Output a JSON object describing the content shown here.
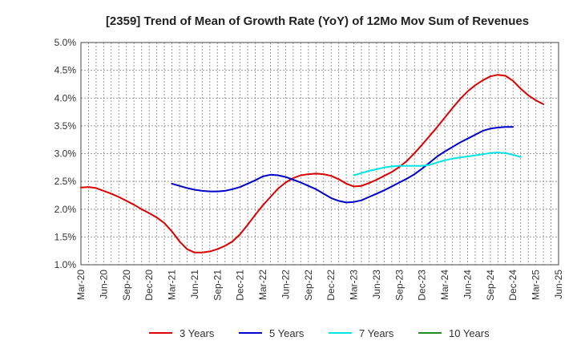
{
  "chart_data": {
    "type": "line",
    "title": "[2359]  Trend of Mean of Growth Rate (YoY) of 12Mo Mov Sum of Revenues",
    "xlabel": "",
    "ylabel": "",
    "ylim": [
      1.0,
      5.0
    ],
    "y_ticks": [
      1.0,
      1.5,
      2.0,
      2.5,
      3.0,
      3.5,
      4.0,
      4.5,
      5.0
    ],
    "y_tick_labels": [
      "1.0%",
      "1.5%",
      "2.0%",
      "2.5%",
      "3.0%",
      "3.5%",
      "4.0%",
      "4.5%",
      "5.0%"
    ],
    "x_tick_labels": [
      "Mar-20",
      "Jun-20",
      "Sep-20",
      "Dec-20",
      "Mar-21",
      "Jun-21",
      "Sep-21",
      "Dec-21",
      "Mar-22",
      "Jun-22",
      "Sep-22",
      "Dec-22",
      "Mar-23",
      "Jun-23",
      "Sep-23",
      "Dec-23",
      "Mar-24",
      "Jun-24",
      "Sep-24",
      "Dec-24",
      "Mar-25",
      "Jun-25"
    ],
    "x_unit": "months since Mar-20",
    "grid": true,
    "legend_position": "bottom",
    "series": [
      {
        "name": "3 Years",
        "color": "#dd0000",
        "points": [
          [
            0,
            2.39
          ],
          [
            1,
            2.4
          ],
          [
            2,
            2.38
          ],
          [
            3,
            2.33
          ],
          [
            4,
            2.28
          ],
          [
            5,
            2.22
          ],
          [
            6,
            2.15
          ],
          [
            7,
            2.08
          ],
          [
            8,
            2.0
          ],
          [
            9,
            1.93
          ],
          [
            10,
            1.85
          ],
          [
            11,
            1.75
          ],
          [
            12,
            1.6
          ],
          [
            13,
            1.42
          ],
          [
            14,
            1.28
          ],
          [
            15,
            1.22
          ],
          [
            16,
            1.22
          ],
          [
            17,
            1.24
          ],
          [
            18,
            1.28
          ],
          [
            19,
            1.34
          ],
          [
            20,
            1.42
          ],
          [
            21,
            1.55
          ],
          [
            22,
            1.72
          ],
          [
            23,
            1.9
          ],
          [
            24,
            2.07
          ],
          [
            25,
            2.22
          ],
          [
            26,
            2.37
          ],
          [
            27,
            2.48
          ],
          [
            28,
            2.56
          ],
          [
            29,
            2.61
          ],
          [
            30,
            2.63
          ],
          [
            31,
            2.64
          ],
          [
            32,
            2.63
          ],
          [
            33,
            2.6
          ],
          [
            34,
            2.54
          ],
          [
            35,
            2.46
          ],
          [
            36,
            2.41
          ],
          [
            37,
            2.42
          ],
          [
            38,
            2.47
          ],
          [
            39,
            2.53
          ],
          [
            40,
            2.6
          ],
          [
            41,
            2.67
          ],
          [
            42,
            2.76
          ],
          [
            43,
            2.87
          ],
          [
            44,
            3.01
          ],
          [
            45,
            3.16
          ],
          [
            46,
            3.32
          ],
          [
            47,
            3.48
          ],
          [
            48,
            3.65
          ],
          [
            49,
            3.82
          ],
          [
            50,
            3.98
          ],
          [
            51,
            4.12
          ],
          [
            52,
            4.23
          ],
          [
            53,
            4.32
          ],
          [
            54,
            4.39
          ],
          [
            55,
            4.42
          ],
          [
            56,
            4.4
          ],
          [
            57,
            4.31
          ],
          [
            58,
            4.17
          ],
          [
            59,
            4.05
          ],
          [
            60,
            3.96
          ],
          [
            61,
            3.89
          ]
        ]
      },
      {
        "name": "5 Years",
        "color": "#0000cc",
        "points": [
          [
            12,
            2.46
          ],
          [
            13,
            2.42
          ],
          [
            14,
            2.38
          ],
          [
            15,
            2.35
          ],
          [
            16,
            2.33
          ],
          [
            17,
            2.32
          ],
          [
            18,
            2.32
          ],
          [
            19,
            2.33
          ],
          [
            20,
            2.36
          ],
          [
            21,
            2.4
          ],
          [
            22,
            2.46
          ],
          [
            23,
            2.52
          ],
          [
            24,
            2.59
          ],
          [
            25,
            2.62
          ],
          [
            26,
            2.61
          ],
          [
            27,
            2.58
          ],
          [
            28,
            2.53
          ],
          [
            29,
            2.48
          ],
          [
            30,
            2.42
          ],
          [
            31,
            2.36
          ],
          [
            32,
            2.28
          ],
          [
            33,
            2.2
          ],
          [
            34,
            2.15
          ],
          [
            35,
            2.12
          ],
          [
            36,
            2.13
          ],
          [
            37,
            2.16
          ],
          [
            38,
            2.22
          ],
          [
            39,
            2.28
          ],
          [
            40,
            2.34
          ],
          [
            41,
            2.41
          ],
          [
            42,
            2.48
          ],
          [
            43,
            2.55
          ],
          [
            44,
            2.63
          ],
          [
            45,
            2.73
          ],
          [
            46,
            2.84
          ],
          [
            47,
            2.95
          ],
          [
            48,
            3.04
          ],
          [
            49,
            3.12
          ],
          [
            50,
            3.2
          ],
          [
            51,
            3.27
          ],
          [
            52,
            3.34
          ],
          [
            53,
            3.41
          ],
          [
            54,
            3.45
          ],
          [
            55,
            3.47
          ],
          [
            56,
            3.48
          ],
          [
            57,
            3.48
          ]
        ]
      },
      {
        "name": "7 Years",
        "color": "#00e5e5",
        "points": [
          [
            36,
            2.61
          ],
          [
            37,
            2.65
          ],
          [
            38,
            2.69
          ],
          [
            39,
            2.72
          ],
          [
            40,
            2.75
          ],
          [
            41,
            2.77
          ],
          [
            42,
            2.78
          ],
          [
            43,
            2.78
          ],
          [
            44,
            2.78
          ],
          [
            45,
            2.78
          ],
          [
            46,
            2.8
          ],
          [
            47,
            2.84
          ],
          [
            48,
            2.88
          ],
          [
            49,
            2.91
          ],
          [
            50,
            2.93
          ],
          [
            51,
            2.95
          ],
          [
            52,
            2.97
          ],
          [
            53,
            2.99
          ],
          [
            54,
            3.01
          ],
          [
            55,
            3.02
          ],
          [
            56,
            3.01
          ],
          [
            57,
            2.98
          ],
          [
            58,
            2.94
          ]
        ]
      },
      {
        "name": "10 Years",
        "color": "#228b22",
        "points": []
      }
    ]
  }
}
